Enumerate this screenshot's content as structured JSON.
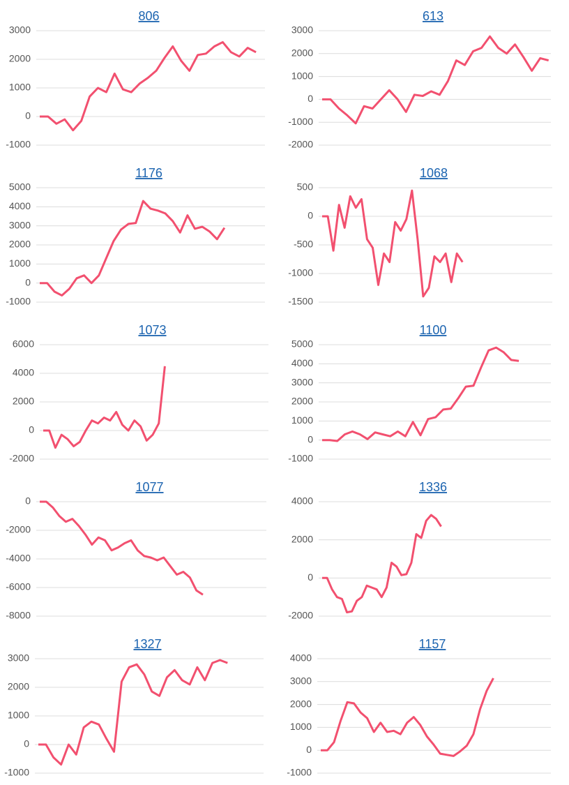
{
  "chart_data": [
    {
      "type": "line",
      "title": "806",
      "ylim": [
        -1000,
        3000
      ],
      "yticks": [
        -1000,
        0,
        1000,
        2000,
        3000
      ],
      "grid": true,
      "color": "#f2506f",
      "values": [
        0,
        0,
        -250,
        -100,
        -480,
        -150,
        700,
        1000,
        850,
        1500,
        950,
        850,
        1150,
        1350,
        1600,
        2050,
        2450,
        1950,
        1600,
        2150,
        2200,
        2450,
        2600,
        2250,
        2100,
        2400,
        2250
      ]
    },
    {
      "type": "line",
      "title": "613",
      "ylim": [
        -2000,
        3000
      ],
      "yticks": [
        -2000,
        -1000,
        0,
        1000,
        2000,
        3000
      ],
      "grid": true,
      "color": "#f2506f",
      "values": [
        0,
        0,
        -400,
        -700,
        -1050,
        -300,
        -400,
        0,
        400,
        0,
        -550,
        200,
        150,
        350,
        200,
        800,
        1700,
        1500,
        2100,
        2250,
        2750,
        2250,
        2000,
        2400,
        1850,
        1250,
        1800,
        1700
      ]
    },
    {
      "type": "line",
      "title": "1176",
      "ylim": [
        -1000,
        5000
      ],
      "yticks": [
        -1000,
        0,
        1000,
        2000,
        3000,
        4000,
        5000
      ],
      "grid": true,
      "color": "#f2506f",
      "values": [
        0,
        0,
        -450,
        -650,
        -300,
        250,
        400,
        0,
        400,
        1300,
        2200,
        2800,
        3100,
        3150,
        4300,
        3900,
        3800,
        3650,
        3250,
        2650,
        3550,
        2850,
        2950,
        2700,
        2300,
        2900
      ]
    },
    {
      "type": "line",
      "title": "1068",
      "ylim": [
        -1500,
        500
      ],
      "yticks": [
        -1500,
        -1000,
        -500,
        0,
        500
      ],
      "grid": true,
      "color": "#f2506f",
      "values": [
        0,
        0,
        -600,
        200,
        -200,
        350,
        150,
        300,
        -400,
        -550,
        -1200,
        -650,
        -800,
        -100,
        -250,
        -50,
        450,
        -400,
        -1400,
        -1250,
        -700,
        -800,
        -650,
        -1150,
        -650,
        -800
      ]
    },
    {
      "type": "line",
      "title": "1073",
      "ylim": [
        -2000,
        6000
      ],
      "yticks": [
        -2000,
        0,
        2000,
        4000,
        6000
      ],
      "grid": true,
      "color": "#f2506f",
      "values": [
        0,
        0,
        -1200,
        -300,
        -600,
        -1100,
        -800,
        0,
        700,
        500,
        900,
        700,
        1300,
        400,
        0,
        700,
        300,
        -700,
        -300,
        500,
        4500
      ]
    },
    {
      "type": "line",
      "title": "1100",
      "ylim": [
        -1000,
        5000
      ],
      "yticks": [
        -1000,
        0,
        1000,
        2000,
        3000,
        4000,
        5000
      ],
      "grid": true,
      "color": "#f2506f",
      "values": [
        0,
        0,
        -50,
        300,
        450,
        300,
        50,
        400,
        300,
        200,
        450,
        200,
        950,
        250,
        1100,
        1200,
        1600,
        1650,
        2200,
        2800,
        2850,
        3800,
        4700,
        4850,
        4600,
        4200,
        4150
      ]
    },
    {
      "type": "line",
      "title": "1077",
      "ylim": [
        -8000,
        0
      ],
      "yticks": [
        -8000,
        -6000,
        -4000,
        -2000,
        0
      ],
      "grid": true,
      "color": "#f2506f",
      "values": [
        0,
        0,
        -400,
        -1000,
        -1400,
        -1200,
        -1700,
        -2300,
        -3000,
        -2500,
        -2700,
        -3400,
        -3200,
        -2900,
        -2700,
        -3400,
        -3800,
        -3900,
        -4100,
        -3900,
        -4500,
        -5100,
        -4900,
        -5300,
        -6200,
        -6500
      ]
    },
    {
      "type": "line",
      "title": "1336",
      "ylim": [
        -2000,
        4000
      ],
      "yticks": [
        -2000,
        0,
        2000,
        4000
      ],
      "grid": true,
      "color": "#f2506f",
      "values": [
        0,
        0,
        -600,
        -1000,
        -1100,
        -1800,
        -1750,
        -1200,
        -1000,
        -400,
        -500,
        -600,
        -1000,
        -500,
        800,
        600,
        150,
        200,
        800,
        2300,
        2100,
        3000,
        3300,
        3100,
        2700
      ]
    },
    {
      "type": "line",
      "title": "1327",
      "ylim": [
        -1000,
        3000
      ],
      "yticks": [
        -1000,
        0,
        1000,
        2000,
        3000
      ],
      "grid": true,
      "color": "#f2506f",
      "values": [
        0,
        0,
        -450,
        -700,
        0,
        -350,
        600,
        800,
        700,
        200,
        -250,
        2200,
        2700,
        2800,
        2450,
        1850,
        1700,
        2350,
        2600,
        2250,
        2100,
        2700,
        2250,
        2850,
        2950,
        2850
      ]
    },
    {
      "type": "line",
      "title": "1157",
      "ylim": [
        -1000,
        4000
      ],
      "yticks": [
        -1000,
        0,
        1000,
        2000,
        3000,
        4000
      ],
      "grid": true,
      "color": "#f2506f",
      "values": [
        0,
        0,
        350,
        1300,
        2100,
        2050,
        1650,
        1400,
        800,
        1200,
        800,
        850,
        700,
        1200,
        1450,
        1100,
        600,
        250,
        -150,
        -200,
        -250,
        -50,
        200,
        700,
        1800,
        2600,
        3150
      ]
    }
  ]
}
